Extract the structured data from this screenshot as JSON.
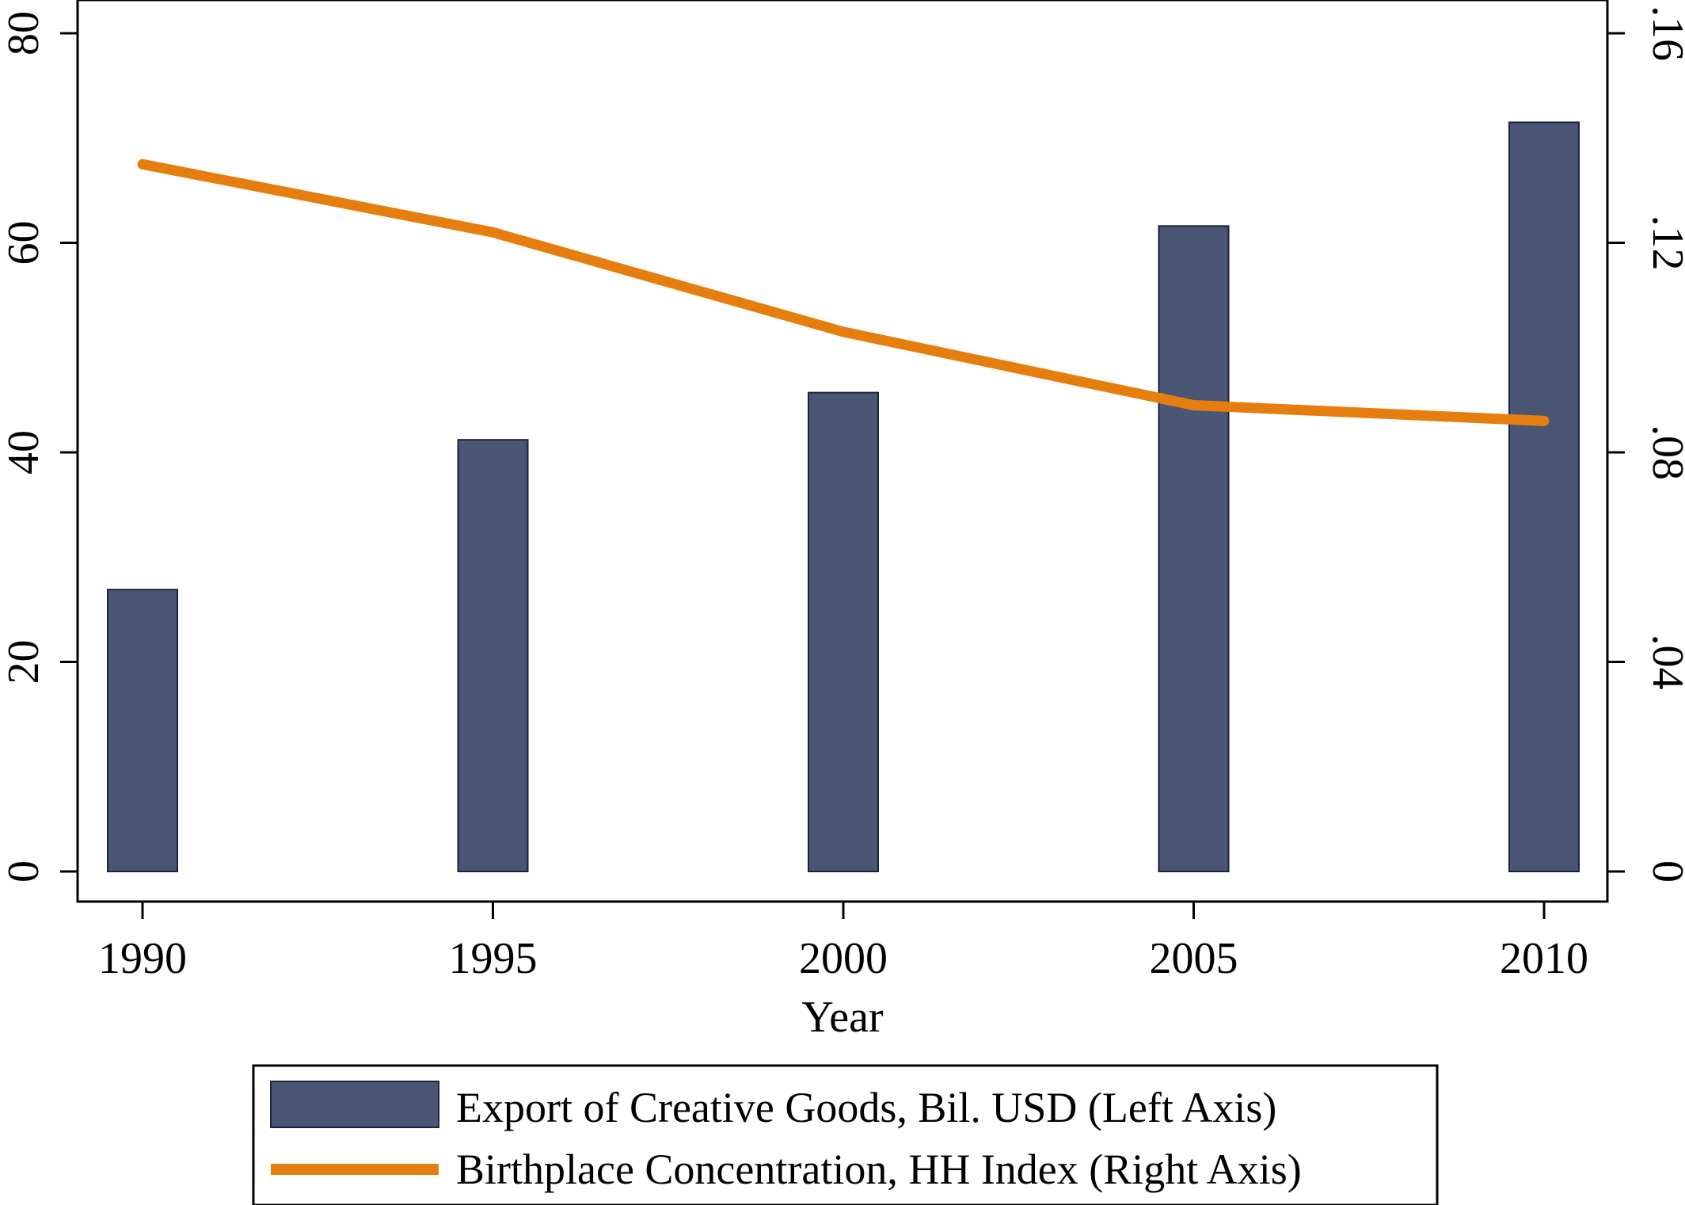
{
  "chart_data": {
    "type": "bar",
    "categories": [
      "1990",
      "1995",
      "2000",
      "2005",
      "2010"
    ],
    "xlabel": "Year",
    "x_tick_labels": [
      "1990",
      "1995",
      "2000",
      "2005",
      "2010"
    ],
    "y_left": {
      "lim": [
        0,
        80
      ],
      "ticks": [
        0,
        20,
        40,
        60,
        80
      ],
      "tick_labels": [
        "0",
        "20",
        "40",
        "60",
        "80"
      ]
    },
    "y_right": {
      "lim": [
        0,
        0.16
      ],
      "ticks": [
        0,
        0.04,
        0.08,
        0.12,
        0.16
      ],
      "tick_labels": [
        "0",
        ".04",
        ".08",
        ".12",
        ".16"
      ]
    },
    "series": [
      {
        "name": "Export of Creative Goods, Bil. USD (Left Axis)",
        "kind": "bar",
        "axis": "left",
        "color": "#4a5673",
        "values": [
          26.9,
          41.2,
          45.7,
          61.6,
          71.5
        ]
      },
      {
        "name": "Birthplace Concentration, HH Index (Right Axis)",
        "kind": "line",
        "axis": "right",
        "color": "#e67e0f",
        "values": [
          0.135,
          0.122,
          0.103,
          0.089,
          0.086
        ]
      }
    ],
    "grid": false,
    "legend_position": "bottom"
  }
}
